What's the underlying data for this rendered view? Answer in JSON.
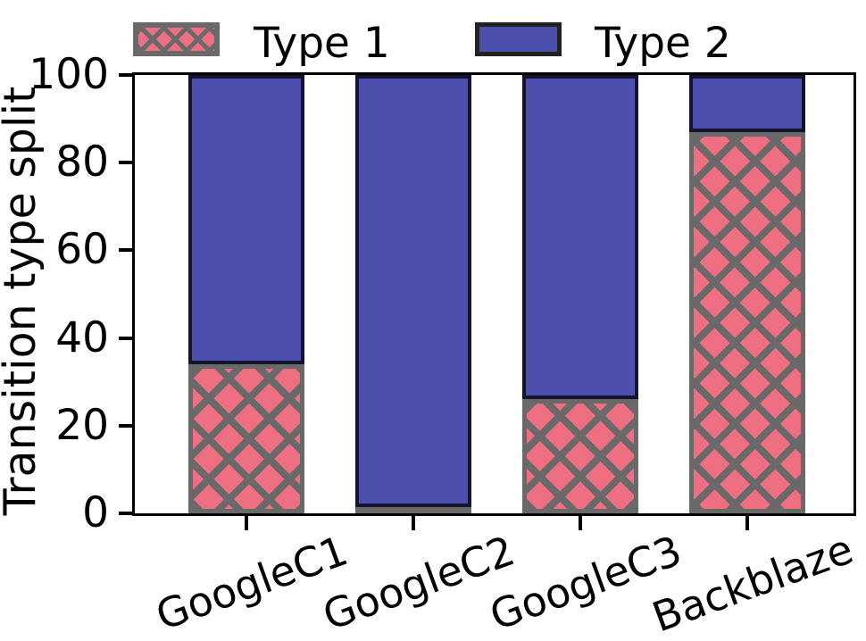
{
  "chart_data": {
    "type": "bar",
    "stacked": true,
    "orientation": "vertical",
    "categories": [
      "GoogleC1",
      "GoogleC2",
      "GoogleC3",
      "Backblaze"
    ],
    "series": [
      {
        "name": "Type 1",
        "values": [
          34,
          1.5,
          26,
          87
        ],
        "color": "#ee6e82",
        "edge_color": "#696969",
        "hatch": "x"
      },
      {
        "name": "Type 2",
        "values": [
          66,
          98.5,
          74,
          13
        ],
        "color": "#4d4fad",
        "edge_color": "#14142e",
        "hatch": null
      }
    ],
    "title": "",
    "xlabel": "",
    "ylabel": "Transition type split",
    "ylim": [
      0,
      100
    ],
    "yticks": [
      "0",
      "20",
      "40",
      "60",
      "80",
      "100"
    ],
    "xtick_rotation_deg": 20,
    "grid": false,
    "legend_position": "top",
    "axis_color": "#000000",
    "background_color": "#ffffff"
  }
}
